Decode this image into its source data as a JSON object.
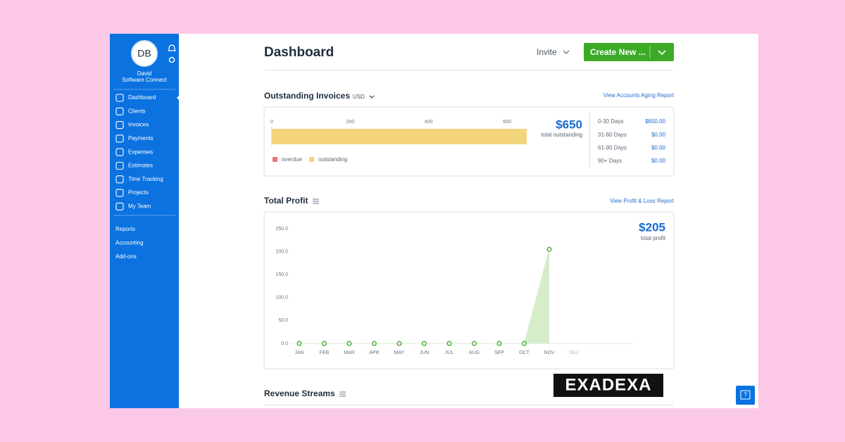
{
  "sidebar": {
    "avatar": "DB",
    "user_name": "David",
    "company": "Software Connect",
    "nav": [
      "Dashboard",
      "Clients",
      "Invoices",
      "Payments",
      "Expenses",
      "Estimates",
      "Time Tracking",
      "Projects",
      "My Team"
    ],
    "secondary": [
      "Reports",
      "Accounting",
      "Add-ons"
    ]
  },
  "header": {
    "title": "Dashboard",
    "invite": "Invite",
    "create": "Create New ..."
  },
  "invoices": {
    "title": "Outstanding Invoices",
    "currency": "USD",
    "link": "View Accounts Aging Report",
    "total": "$650",
    "total_label": "total outstanding",
    "chart": {
      "type": "bar",
      "orientation": "horizontal",
      "xlim": [
        0,
        650
      ],
      "xticks": [
        0,
        200,
        400,
        600
      ],
      "series": [
        {
          "name": "overdue",
          "color": "#e9707f",
          "values": [
            0
          ]
        },
        {
          "name": "outstanding",
          "color": "#f4d47c",
          "values": [
            650
          ]
        }
      ]
    },
    "aging": [
      [
        "0-30 Days",
        "$650.00"
      ],
      [
        "31-60 Days",
        "$0.00"
      ],
      [
        "61-90 Days",
        "$0.00"
      ],
      [
        "90+ Days",
        "$0.00"
      ]
    ]
  },
  "profit": {
    "title": "Total Profit",
    "link": "View Profit & Loss Report",
    "total": "$205",
    "total_label": "total profit",
    "chart": {
      "type": "line",
      "categories": [
        "JAN",
        "FEB",
        "MAR",
        "APR",
        "MAY",
        "JUN",
        "JUL",
        "AUG",
        "SEP",
        "OCT",
        "NOV",
        "DEC"
      ],
      "values": [
        0,
        0,
        0,
        0,
        0,
        0,
        0,
        0,
        0,
        0,
        205,
        null
      ],
      "color": "#3aa52a",
      "area_color": "#d6edca",
      "ylim": [
        0,
        250
      ],
      "yticks": [
        {
          "value": 0,
          "label": "0.0"
        },
        {
          "value": 50,
          "label": "50.0"
        },
        {
          "value": 100,
          "label": "100.0"
        },
        {
          "value": 150,
          "label": "150.0"
        },
        {
          "value": 200,
          "label": "200.0"
        },
        {
          "value": 250,
          "label": "250.0"
        }
      ]
    }
  },
  "revenue": {
    "title": "Revenue Streams"
  },
  "watermark": "EXADEXA"
}
